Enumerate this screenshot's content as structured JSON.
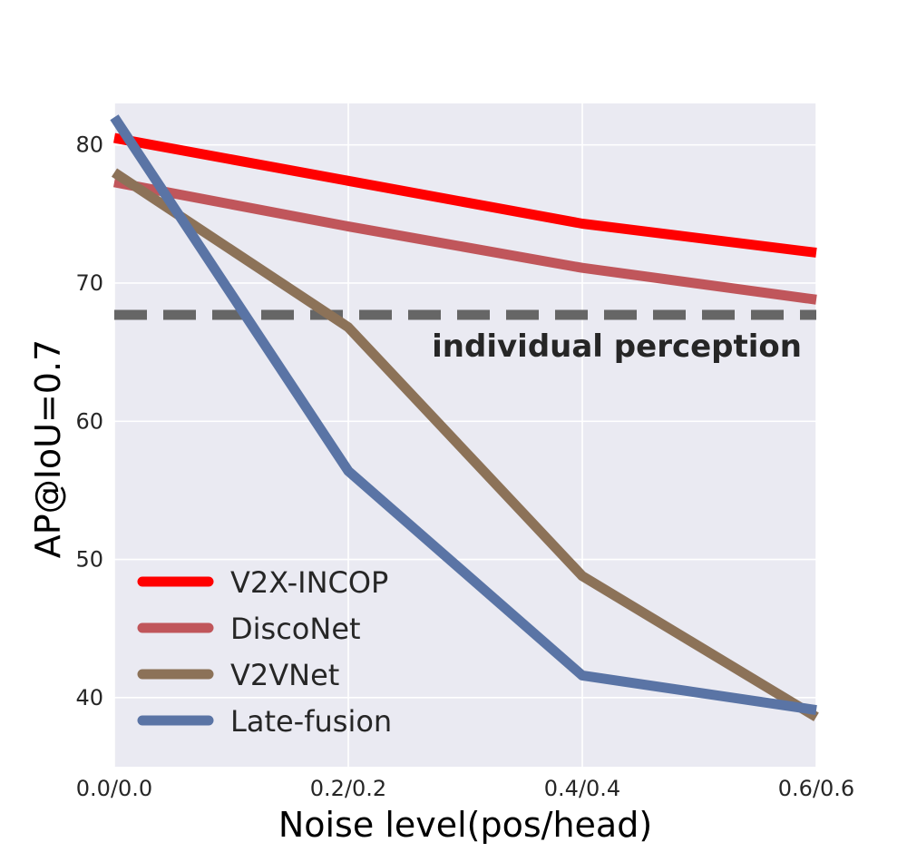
{
  "chart_data": {
    "type": "line",
    "title": "",
    "xlabel": "Noise level(pos/head)",
    "ylabel": "AP@IoU=0.7",
    "categories": [
      "0.0/0.0",
      "0.2/0.2",
      "0.4/0.4",
      "0.6/0.6"
    ],
    "x": [
      0,
      0.2,
      0.4,
      0.6
    ],
    "xlim": [
      0,
      0.6
    ],
    "ylim": [
      35,
      83
    ],
    "yticks": [
      40,
      50,
      60,
      70,
      80
    ],
    "grid": true,
    "legend_position": "lower-left",
    "series": [
      {
        "name": "V2X-INCOP",
        "color": "#ff0000",
        "values": [
          80.5,
          77.4,
          74.3,
          72.2
        ]
      },
      {
        "name": "DiscoNet",
        "color": "#c0565b",
        "values": [
          77.3,
          74.1,
          71.1,
          68.8
        ]
      },
      {
        "name": "V2VNet",
        "color": "#8c7258",
        "values": [
          78.0,
          66.8,
          48.8,
          38.6
        ]
      },
      {
        "name": "Late-fusion",
        "color": "#5a74a5",
        "values": [
          82.0,
          56.4,
          41.6,
          39.1
        ]
      }
    ],
    "reference_line": {
      "label": "individual perception",
      "value": 67.7,
      "color": "#666666"
    }
  }
}
